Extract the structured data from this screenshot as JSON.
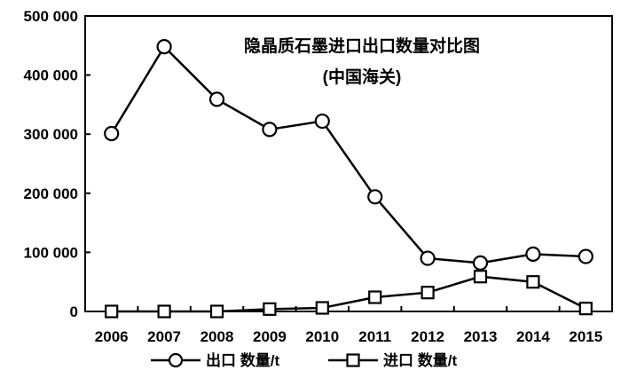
{
  "chart_data": {
    "type": "line",
    "title": "隐晶质石墨进口出口数量对比图",
    "subtitle": "(中国海关)",
    "xlabel": "",
    "ylabel": "",
    "categories": [
      "2006",
      "2007",
      "2008",
      "2009",
      "2010",
      "2011",
      "2012",
      "2013",
      "2014",
      "2015"
    ],
    "ylim": [
      0,
      500000
    ],
    "yticks": [
      0,
      100000,
      200000,
      300000,
      400000,
      500000
    ],
    "ytick_labels": [
      "0",
      "100 000",
      "200 000",
      "300 000",
      "400 000",
      "500 000"
    ],
    "grid": false,
    "legend_position": "bottom",
    "series": [
      {
        "name": "出口 数量/t",
        "marker": "circle",
        "color": "#000000",
        "values": [
          301000,
          448000,
          359000,
          308000,
          322000,
          194000,
          90000,
          82000,
          97000,
          93000
        ]
      },
      {
        "name": "进口 数量/t",
        "marker": "square",
        "color": "#000000",
        "values": [
          0,
          0,
          0,
          4000,
          6000,
          24000,
          32000,
          59000,
          50000,
          5000
        ]
      }
    ]
  }
}
